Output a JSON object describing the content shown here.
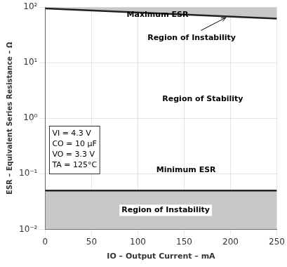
{
  "chart_data": {
    "type": "line",
    "xlabel": "IO – Output Current – mA",
    "ylabel": "ESR – Equivalent Series Resistance – Ω",
    "x": [
      0,
      250
    ],
    "series": [
      {
        "type": "area",
        "color": "#c8c8c8",
        "values": [
          95,
          62
        ]
      },
      {
        "type": "area",
        "color": "#c8c8c8",
        "values": [
          0.05,
          0.05
        ]
      }
    ],
    "xlim": [
      0,
      250
    ],
    "ylim": [
      0.01,
      100
    ],
    "xticks": [
      0,
      50,
      100,
      150,
      200,
      250
    ],
    "yticks": [
      {
        "value": 0.01,
        "label": "10⁻²"
      },
      {
        "value": 0.1,
        "label": "10⁻¹"
      },
      {
        "value": 1,
        "label": "10⁰"
      },
      {
        "value": 10,
        "label": "10¹"
      },
      {
        "value": 100,
        "label": "10²"
      }
    ],
    "log": "y",
    "grid": true,
    "annotations": [
      {
        "text": "Maximum ESR",
        "x": 88,
        "y": 62,
        "arrow_from": [
          168,
          38
        ],
        "arrow_to": [
          195,
          65
        ]
      },
      {
        "text": "Region of Instability",
        "x": 158,
        "y": 28
      },
      {
        "text": "Region of Stability",
        "x": 170,
        "y": 2.2
      },
      {
        "text": "Minimum ESR",
        "x": 152,
        "y": 0.115
      },
      {
        "text": "Region of Instability",
        "x": 130,
        "y": 0.022
      },
      {
        "text": [
          "VI = 4.3 V",
          "CO = 10 μF",
          "VO = 3.3 V",
          "TA = 125°C"
        ],
        "x": 3,
        "y": 0.72
      }
    ]
  }
}
